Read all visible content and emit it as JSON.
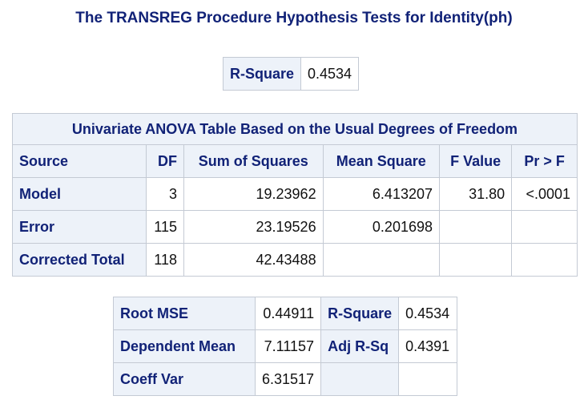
{
  "title": "The TRANSREG Procedure Hypothesis Tests for Identity(ph)",
  "rsquare_box": {
    "label": "R-Square",
    "value": "0.4534"
  },
  "anova": {
    "caption": "Univariate ANOVA Table Based on the Usual Degrees of Freedom",
    "headers": [
      "Source",
      "DF",
      "Sum of Squares",
      "Mean Square",
      "F Value",
      "Pr > F"
    ],
    "rows": [
      [
        "Model",
        "3",
        "19.23962",
        "6.413207",
        "31.80",
        "<.0001"
      ],
      [
        "Error",
        "115",
        "23.19526",
        "0.201698",
        "",
        ""
      ],
      [
        "Corrected Total",
        "118",
        "42.43488",
        "",
        "",
        ""
      ]
    ]
  },
  "fit": {
    "rows": [
      [
        "Root MSE",
        "0.44911",
        "R-Square",
        "0.4534"
      ],
      [
        "Dependent Mean",
        "7.11157",
        "Adj R-Sq",
        "0.4391"
      ],
      [
        "Coeff Var",
        "6.31517",
        "",
        ""
      ]
    ]
  },
  "colors": {
    "header_bg": "#edf2f9",
    "header_text": "#112277",
    "border": "#c4cad4"
  }
}
